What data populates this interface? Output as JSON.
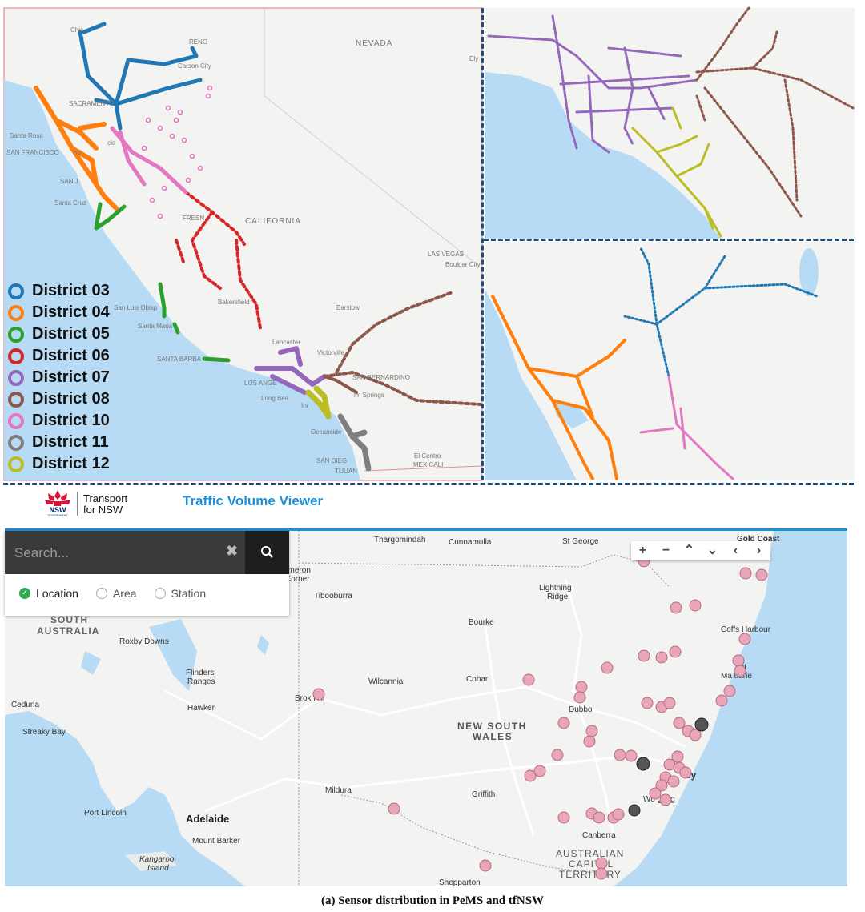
{
  "colors": {
    "d03": "#1f77b4",
    "d04": "#ff7f0e",
    "d05": "#2ca02c",
    "d06": "#d62728",
    "d07": "#9467bd",
    "d08": "#8c564b",
    "d10": "#e377c2",
    "d11": "#7f7f7f",
    "d12": "#bcbd22",
    "sensor_pin": "#e8a6b8",
    "sensor_pin_dark": "#444444",
    "water": "#b7dbf4",
    "land": "#f3f3f1",
    "accent": "#1e90d8"
  },
  "ca_map": {
    "labels": {
      "reno": "RENO",
      "carson_city": "Carson City",
      "nevada": "NEVADA",
      "sacramento": "SACRAMENTO",
      "santa_rosa": "Santa Rosa",
      "san_francisco": "SAN FRANCISCO",
      "oakland": "nd",
      "stockton": "ckt",
      "san_jose": "SAN J",
      "santa_cruz": "Santa Cruz",
      "fresno": "FRESN",
      "california": "CALIFORNIA",
      "las_vegas": "LAS VEGAS",
      "boulder_city": "Boulder City",
      "san_luis_obispo": "San Luis Obisp",
      "santa_maria": "Santa Maria",
      "bakersfield": "Bakersfield",
      "barstow": "Barstow",
      "lancaster": "Lancaster",
      "victorville": "Victorville",
      "santa_barbara": "SANTA BARBA",
      "los_angeles": "LOS ANGE",
      "san_bernardino": "SAN BERNARDINO",
      "palm_springs": "lm Springs",
      "long_beach": "Long Bea",
      "irvine": "Irv",
      "oceanside": "Oceanside",
      "san_diego": "SAN DIEG",
      "tijuana": "TIJUAN",
      "el_centro": "El Centro",
      "mexicali": "MEXICALI",
      "chico": "Chic",
      "ely": "Ely"
    },
    "legend": [
      {
        "label": "District 03",
        "key": "d03"
      },
      {
        "label": "District 04",
        "key": "d04"
      },
      {
        "label": "District 05",
        "key": "d05"
      },
      {
        "label": "District 06",
        "key": "d06"
      },
      {
        "label": "District 07",
        "key": "d07"
      },
      {
        "label": "District 08",
        "key": "d08"
      },
      {
        "label": "District 10",
        "key": "d10"
      },
      {
        "label": "District 11",
        "key": "d11"
      },
      {
        "label": "District 12",
        "key": "d12"
      }
    ]
  },
  "nsw_header": {
    "logo_text": "NSW",
    "logo_subtext": "GOVERNMENT",
    "agency_line1": "Transport",
    "agency_line2": "for NSW",
    "app_title": "Traffic Volume Viewer"
  },
  "search": {
    "placeholder": "Search...",
    "clear_icon": "close-icon",
    "search_icon": "search-icon",
    "options": [
      {
        "label": "Location",
        "selected": true
      },
      {
        "label": "Area",
        "selected": false
      },
      {
        "label": "Station",
        "selected": false
      }
    ]
  },
  "map_controls": {
    "zoom_in": "+",
    "zoom_out": "−",
    "pan_up": "⌃",
    "pan_down": "⌄",
    "pan_left": "‹",
    "pan_right": "›"
  },
  "nsw_map": {
    "labels": {
      "thargomindah": "Thargomindah",
      "cunnamulla": "Cunnamulla",
      "st_george": "St George",
      "gold_coast": "Gold Coast",
      "cameron_corner_1": "ameron",
      "cameron_corner_2": "Corner",
      "tibooburra": "Tibooburra",
      "lightning_ridge_1": "Lightning",
      "lightning_ridge_2": "Ridge",
      "south_australia_1": "SOUTH",
      "south_australia_2": "AUSTRALIA",
      "bourke": "Bourke",
      "coffs_harbour": "Coffs Harbour",
      "roxby_downs": "Roxby Downs",
      "port_macquarie_1": "rt",
      "port_macquarie_2": "Ma   uarie",
      "flinders_ranges_1": "Flinders",
      "flinders_ranges_2": "Ranges",
      "wilcannia": "Wilcannia",
      "cobar": "Cobar",
      "broken_hill": "Brok    Hill",
      "ceduna": "Ceduna",
      "hawker": "Hawker",
      "dubbo": "Dubbo",
      "streaky_bay": "Streaky Bay",
      "new_south_wales_1": "NEW SOUTH",
      "new_south_wales_2": "WALES",
      "sydney": "ey",
      "mildura": "Mildura",
      "griffith": "Griffith",
      "wollongong": "Wo     gong",
      "port_lincoln": "Port Lincoln",
      "adelaide": "Adelaide",
      "mount_barker": "Mount Barker",
      "canberra": "Canberra",
      "act_1": "AUSTRALIAN",
      "act_2": "CAPITAL",
      "act_3": "TERRITORY",
      "kangaroo_island_1": "Kangaroo",
      "kangaroo_island_2": "Island",
      "shepparton": "Shepparton"
    }
  },
  "caption": "(a) Sensor distribution in PeMS and tfNSW"
}
